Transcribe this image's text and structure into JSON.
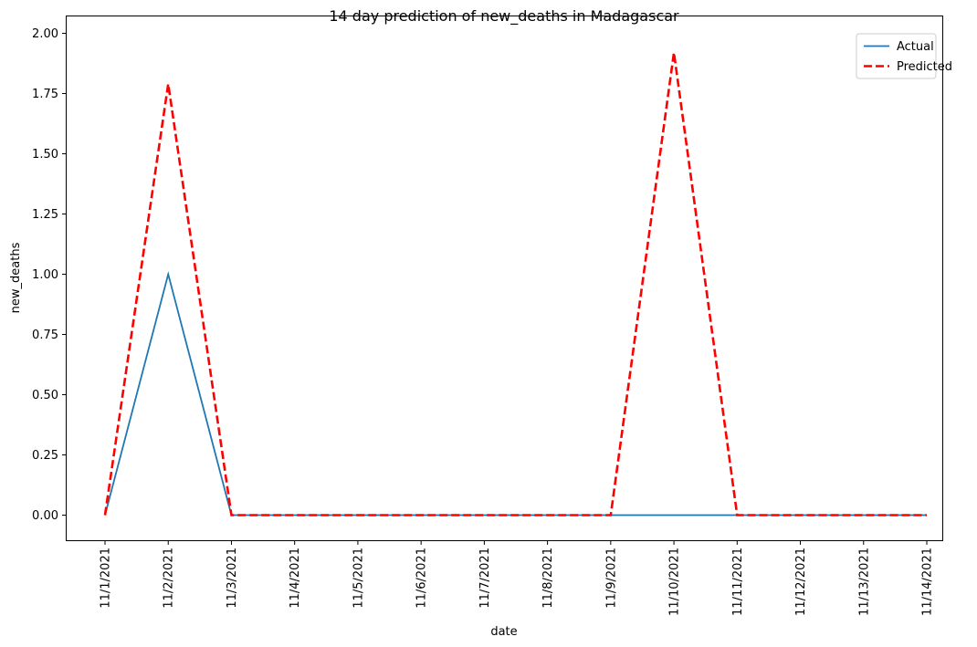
{
  "chart_data": {
    "type": "line",
    "title": "14 day prediction of new_deaths in Madagascar",
    "xlabel": "date",
    "ylabel": "new_deaths",
    "x": [
      "11/1/2021",
      "11/2/2021",
      "11/3/2021",
      "11/4/2021",
      "11/5/2021",
      "11/6/2021",
      "11/7/2021",
      "11/8/2021",
      "11/9/2021",
      "11/10/2021",
      "11/11/2021",
      "11/12/2021",
      "11/13/2021",
      "11/14/2021"
    ],
    "ylim": [
      -0.1,
      2.0
    ],
    "yticks": [
      "0.00",
      "0.25",
      "0.50",
      "0.75",
      "1.00",
      "1.25",
      "1.50",
      "1.75",
      "2.00"
    ],
    "series": [
      {
        "name": "Actual",
        "values": [
          0,
          1,
          0,
          0,
          0,
          0,
          0,
          0,
          0,
          0,
          0,
          0,
          0,
          0
        ],
        "color": "#1f77b4",
        "style": "solid"
      },
      {
        "name": "Predicted",
        "values": [
          0,
          1.79,
          0,
          0,
          0,
          0,
          0,
          0,
          0,
          1.92,
          0,
          0,
          0,
          0
        ],
        "color": "#ff0000",
        "style": "dashed"
      }
    ],
    "legend_position": "top-right",
    "grid": false
  }
}
